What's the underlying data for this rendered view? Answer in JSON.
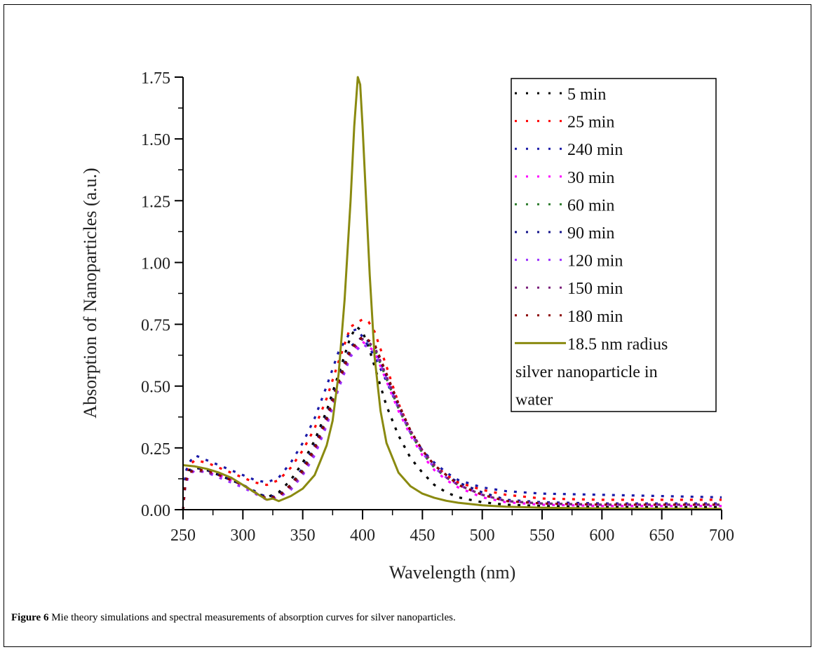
{
  "caption": {
    "label": "Figure 6",
    "text": " Mie theory simulations and spectral measurements of absorption curves for silver nanoparticles."
  },
  "chart_data": {
    "type": "line",
    "title": "",
    "xlabel": "Wavelength (nm)",
    "ylabel": "Absorption of Nanoparticles (a.u.)",
    "xlim": [
      250,
      700
    ],
    "ylim": [
      0,
      1.75
    ],
    "xticks": [
      250,
      300,
      350,
      400,
      450,
      500,
      550,
      600,
      650,
      700
    ],
    "xtick_labels": [
      "250",
      "300",
      "350",
      "400",
      "450",
      "500",
      "550",
      "600",
      "650",
      "700"
    ],
    "yticks": [
      0,
      0.25,
      0.5,
      0.75,
      1.0,
      1.25,
      1.5,
      1.75
    ],
    "ytick_labels": [
      "0.00",
      "0.25",
      "0.50",
      "0.75",
      "1.00",
      "1.25",
      "1.50",
      "1.75"
    ],
    "grid": false,
    "legend_position": "top-right",
    "legend_wrap_lines": [
      "silver nanoparticle in",
      "water"
    ],
    "series": [
      {
        "name": "5 min",
        "color": "#000000",
        "style": "dotted",
        "x": [
          250,
          252,
          255,
          260,
          270,
          280,
          290,
          300,
          310,
          320,
          330,
          340,
          350,
          360,
          370,
          380,
          390,
          395,
          400,
          405,
          410,
          420,
          430,
          440,
          450,
          460,
          470,
          480,
          500,
          520,
          550,
          600,
          650,
          700
        ],
        "y": [
          0.0,
          0.12,
          0.16,
          0.17,
          0.16,
          0.14,
          0.12,
          0.1,
          0.07,
          0.05,
          0.07,
          0.12,
          0.19,
          0.28,
          0.4,
          0.55,
          0.7,
          0.74,
          0.72,
          0.66,
          0.58,
          0.42,
          0.3,
          0.21,
          0.15,
          0.1,
          0.07,
          0.05,
          0.03,
          0.02,
          0.015,
          0.01,
          0.01,
          0.01
        ]
      },
      {
        "name": "25 min",
        "color": "#ff0000",
        "style": "dotted",
        "x": [
          250,
          252,
          255,
          260,
          270,
          280,
          290,
          300,
          310,
          320,
          330,
          340,
          350,
          360,
          370,
          380,
          390,
          400,
          405,
          410,
          420,
          430,
          440,
          450,
          460,
          470,
          480,
          500,
          520,
          550,
          600,
          650,
          700
        ],
        "y": [
          0.0,
          0.14,
          0.18,
          0.2,
          0.19,
          0.17,
          0.15,
          0.13,
          0.11,
          0.1,
          0.12,
          0.17,
          0.24,
          0.33,
          0.45,
          0.6,
          0.74,
          0.77,
          0.76,
          0.72,
          0.58,
          0.43,
          0.32,
          0.24,
          0.18,
          0.14,
          0.11,
          0.08,
          0.06,
          0.045,
          0.04,
          0.04,
          0.04
        ]
      },
      {
        "name": "240 min",
        "color": "#1a1aa8",
        "style": "dotted",
        "x": [
          250,
          252,
          255,
          260,
          270,
          280,
          290,
          300,
          310,
          320,
          330,
          340,
          350,
          360,
          370,
          380,
          390,
          395,
          400,
          410,
          420,
          430,
          440,
          450,
          460,
          470,
          480,
          500,
          520,
          550,
          600,
          650,
          700
        ],
        "y": [
          0.0,
          0.15,
          0.19,
          0.22,
          0.2,
          0.18,
          0.16,
          0.14,
          0.12,
          0.11,
          0.13,
          0.19,
          0.27,
          0.37,
          0.5,
          0.64,
          0.72,
          0.73,
          0.7,
          0.62,
          0.52,
          0.41,
          0.31,
          0.24,
          0.19,
          0.15,
          0.12,
          0.09,
          0.075,
          0.065,
          0.06,
          0.055,
          0.05
        ]
      },
      {
        "name": "30 min",
        "color": "#ff00ff",
        "style": "dotted",
        "x": [
          250,
          252,
          255,
          260,
          270,
          280,
          290,
          300,
          310,
          320,
          330,
          340,
          350,
          360,
          370,
          380,
          390,
          400,
          410,
          420,
          430,
          440,
          450,
          460,
          470,
          480,
          500,
          520,
          550,
          600,
          650,
          700
        ],
        "y": [
          0.0,
          0.1,
          0.14,
          0.16,
          0.15,
          0.14,
          0.12,
          0.1,
          0.07,
          0.04,
          0.05,
          0.09,
          0.15,
          0.23,
          0.35,
          0.5,
          0.63,
          0.68,
          0.64,
          0.52,
          0.4,
          0.3,
          0.22,
          0.16,
          0.12,
          0.09,
          0.05,
          0.03,
          0.02,
          0.015,
          0.015,
          0.015
        ]
      },
      {
        "name": "60 min",
        "color": "#2e7d2e",
        "style": "dotted",
        "x": [
          250,
          252,
          255,
          260,
          270,
          280,
          290,
          300,
          310,
          320,
          330,
          340,
          350,
          360,
          370,
          380,
          390,
          400,
          410,
          420,
          430,
          440,
          450,
          460,
          470,
          480,
          500,
          520,
          550,
          600,
          650,
          700
        ],
        "y": [
          0.0,
          0.11,
          0.15,
          0.16,
          0.15,
          0.14,
          0.12,
          0.1,
          0.07,
          0.045,
          0.055,
          0.1,
          0.16,
          0.25,
          0.37,
          0.52,
          0.65,
          0.69,
          0.65,
          0.53,
          0.41,
          0.31,
          0.23,
          0.17,
          0.13,
          0.1,
          0.06,
          0.035,
          0.025,
          0.02,
          0.02,
          0.02
        ]
      },
      {
        "name": "90 min",
        "color": "#14148c",
        "style": "dotted",
        "x": [
          250,
          252,
          255,
          260,
          270,
          280,
          290,
          300,
          310,
          320,
          330,
          340,
          350,
          360,
          370,
          380,
          390,
          400,
          410,
          420,
          430,
          440,
          450,
          460,
          470,
          480,
          500,
          520,
          550,
          600,
          650,
          700
        ],
        "y": [
          0.0,
          0.11,
          0.15,
          0.17,
          0.16,
          0.14,
          0.12,
          0.1,
          0.075,
          0.05,
          0.06,
          0.1,
          0.17,
          0.26,
          0.38,
          0.53,
          0.66,
          0.7,
          0.66,
          0.54,
          0.42,
          0.32,
          0.24,
          0.18,
          0.14,
          0.11,
          0.07,
          0.04,
          0.03,
          0.025,
          0.025,
          0.025
        ]
      },
      {
        "name": "120 min",
        "color": "#9b30ff",
        "style": "dotted",
        "x": [
          250,
          252,
          255,
          260,
          270,
          280,
          290,
          300,
          310,
          320,
          330,
          340,
          350,
          360,
          370,
          380,
          390,
          400,
          410,
          420,
          430,
          440,
          450,
          460,
          470,
          480,
          500,
          520,
          550,
          600,
          650,
          700
        ],
        "y": [
          0.0,
          0.1,
          0.14,
          0.16,
          0.15,
          0.13,
          0.11,
          0.09,
          0.065,
          0.04,
          0.05,
          0.08,
          0.14,
          0.22,
          0.34,
          0.49,
          0.62,
          0.67,
          0.64,
          0.53,
          0.41,
          0.31,
          0.23,
          0.17,
          0.13,
          0.1,
          0.06,
          0.035,
          0.025,
          0.02,
          0.02,
          0.02
        ]
      },
      {
        "name": "150 min",
        "color": "#7a1f7a",
        "style": "dotted",
        "x": [
          250,
          252,
          255,
          260,
          270,
          280,
          290,
          300,
          310,
          320,
          330,
          340,
          350,
          360,
          370,
          380,
          390,
          400,
          410,
          420,
          430,
          440,
          450,
          460,
          470,
          480,
          500,
          520,
          550,
          600,
          650,
          700
        ],
        "y": [
          0.0,
          0.11,
          0.15,
          0.16,
          0.15,
          0.14,
          0.12,
          0.1,
          0.07,
          0.045,
          0.055,
          0.09,
          0.15,
          0.24,
          0.36,
          0.51,
          0.64,
          0.69,
          0.66,
          0.54,
          0.42,
          0.32,
          0.24,
          0.18,
          0.13,
          0.1,
          0.06,
          0.035,
          0.025,
          0.02,
          0.02,
          0.02
        ]
      },
      {
        "name": "180 min",
        "color": "#8b0000",
        "style": "dotted",
        "x": [
          250,
          252,
          255,
          260,
          270,
          280,
          290,
          300,
          310,
          320,
          330,
          340,
          350,
          360,
          370,
          380,
          390,
          400,
          410,
          420,
          430,
          440,
          450,
          460,
          470,
          480,
          500,
          520,
          550,
          600,
          650,
          700
        ],
        "y": [
          0.0,
          0.11,
          0.15,
          0.16,
          0.16,
          0.14,
          0.12,
          0.1,
          0.07,
          0.045,
          0.055,
          0.1,
          0.16,
          0.25,
          0.37,
          0.52,
          0.65,
          0.7,
          0.67,
          0.55,
          0.43,
          0.32,
          0.24,
          0.18,
          0.14,
          0.1,
          0.06,
          0.035,
          0.025,
          0.02,
          0.02,
          0.02
        ]
      },
      {
        "name": "18.5 nm radius",
        "color": "#8a8a10",
        "style": "solid",
        "x": [
          250,
          260,
          270,
          280,
          290,
          300,
          310,
          320,
          325,
          330,
          340,
          350,
          360,
          365,
          370,
          375,
          380,
          385,
          390,
          393,
          396,
          398,
          400,
          403,
          406,
          410,
          415,
          420,
          430,
          440,
          450,
          460,
          470,
          480,
          500,
          520,
          550,
          600,
          650,
          700
        ],
        "y": [
          0.18,
          0.175,
          0.165,
          0.15,
          0.13,
          0.1,
          0.07,
          0.04,
          0.045,
          0.035,
          0.055,
          0.085,
          0.14,
          0.2,
          0.26,
          0.36,
          0.55,
          0.85,
          1.25,
          1.55,
          1.75,
          1.72,
          1.55,
          1.25,
          0.95,
          0.62,
          0.4,
          0.27,
          0.15,
          0.095,
          0.065,
          0.048,
          0.036,
          0.028,
          0.018,
          0.012,
          0.008,
          0.005,
          0.004,
          0.003
        ]
      }
    ]
  }
}
